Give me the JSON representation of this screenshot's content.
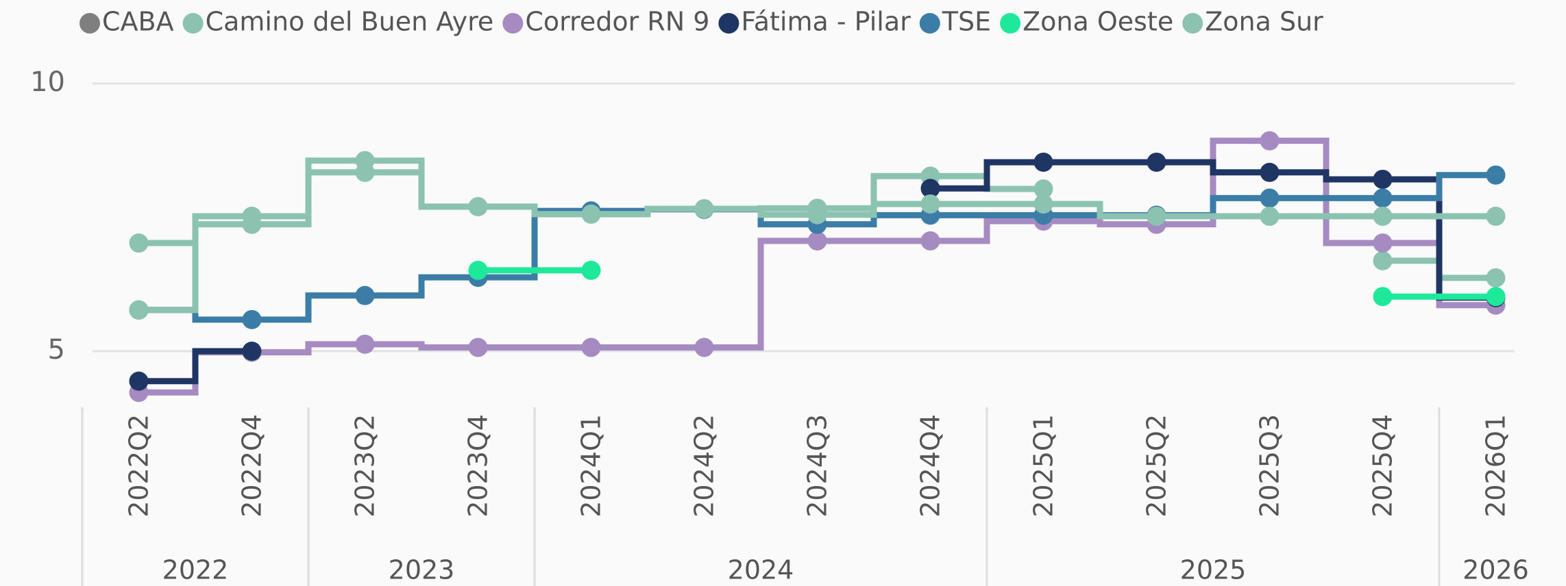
{
  "chart_data": {
    "type": "step-line",
    "categories": [
      "2022Q2",
      "2022Q4",
      "2023Q2",
      "2023Q4",
      "2024Q1",
      "2024Q2",
      "2024Q3",
      "2024Q4",
      "2025Q1",
      "2025Q2",
      "2025Q3",
      "2025Q4",
      "2026Q1"
    ],
    "category_groups": [
      {
        "label": "2022",
        "span": 2
      },
      {
        "label": "2023",
        "span": 2
      },
      {
        "label": "2024",
        "span": 4
      },
      {
        "label": "2025",
        "span": 4
      },
      {
        "label": "2026",
        "span": 1
      }
    ],
    "ylim": [
      4,
      10.5
    ],
    "yticks": [
      5,
      10
    ],
    "grid": true,
    "legend": "top",
    "series": [
      {
        "name": "CABA",
        "color": "#7f7f7f",
        "values": [
          5.77,
          null,
          null,
          null,
          null,
          null,
          null,
          null,
          null,
          null,
          null,
          null,
          null
        ]
      },
      {
        "name": "Camino del Buen Ayre",
        "color": "#8cc2b0",
        "values": [
          7.02,
          7.52,
          8.56,
          7.7,
          7.56,
          7.66,
          7.67,
          8.27,
          8.03,
          null,
          null,
          6.69,
          6.37
        ]
      },
      {
        "name": "Corredor RN 9",
        "color": "#a68bc3",
        "values": [
          4.23,
          4.98,
          5.13,
          5.07,
          5.07,
          5.07,
          7.06,
          7.06,
          7.43,
          7.37,
          8.93,
          7.02,
          5.86
        ]
      },
      {
        "name": "Fátima - Pilar",
        "color": "#1f3564",
        "values": [
          4.44,
          5.0,
          null,
          null,
          null,
          null,
          null,
          8.04,
          8.53,
          8.53,
          8.34,
          8.21,
          6.0
        ]
      },
      {
        "name": "TSE",
        "color": "#3c7da8",
        "values": [
          5.77,
          5.59,
          6.04,
          6.38,
          7.62,
          7.65,
          7.37,
          7.54,
          7.54,
          7.54,
          7.86,
          7.86,
          8.29
        ]
      },
      {
        "name": "Zona Oeste",
        "color": "#1ee99a",
        "values": [
          null,
          null,
          null,
          6.51,
          6.51,
          null,
          null,
          null,
          null,
          null,
          null,
          6.02,
          6.02
        ]
      },
      {
        "name": "Zona Sur",
        "color": "#8cc2b0",
        "values": [
          5.77,
          7.37,
          8.34,
          7.7,
          7.56,
          7.66,
          7.55,
          7.75,
          7.75,
          7.52,
          7.52,
          7.52,
          7.52
        ]
      }
    ]
  }
}
